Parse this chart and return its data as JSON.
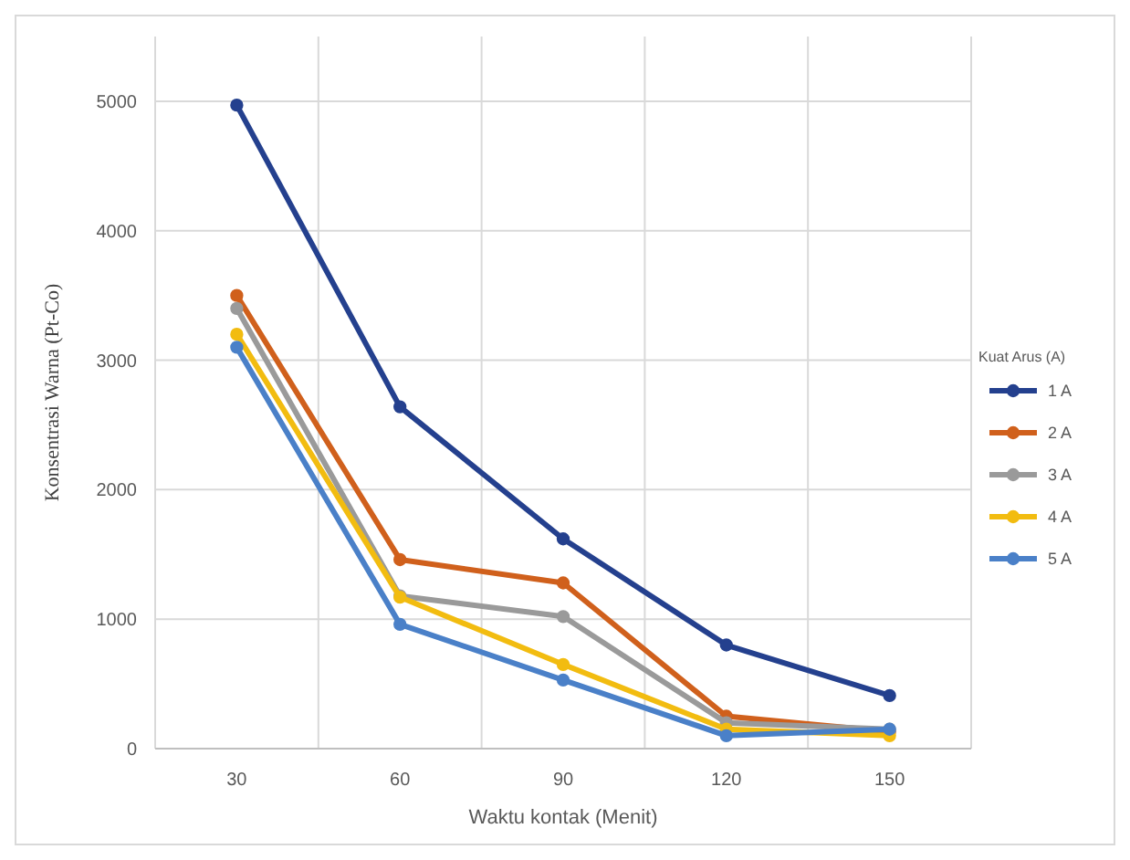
{
  "chart_data": {
    "type": "line",
    "xlabel": "Waktu kontak (Menit)",
    "ylabel": "Konsentrasi Warna (Pt-Co)",
    "legend_title": "Kuat Arus (A)",
    "categories": [
      "30",
      "60",
      "90",
      "120",
      "150"
    ],
    "series": [
      {
        "name": "1 A",
        "color": "#24408e",
        "values": [
          4970,
          2640,
          1620,
          800,
          410
        ]
      },
      {
        "name": "2 A",
        "color": "#d0601c",
        "values": [
          3500,
          1460,
          1280,
          250,
          130
        ]
      },
      {
        "name": "3 A",
        "color": "#9a9a9a",
        "values": [
          3400,
          1180,
          1020,
          200,
          150
        ]
      },
      {
        "name": "4 A",
        "color": "#f2bc10",
        "values": [
          3200,
          1170,
          650,
          150,
          100
        ]
      },
      {
        "name": "5 A",
        "color": "#4a80c8",
        "values": [
          3100,
          960,
          530,
          100,
          150
        ]
      }
    ],
    "ylim": [
      0,
      5500
    ],
    "yticks": [
      0,
      1000,
      2000,
      3000,
      4000,
      5000
    ],
    "grid": true,
    "legend": "right",
    "marker": "circle",
    "line_style": "solid"
  }
}
